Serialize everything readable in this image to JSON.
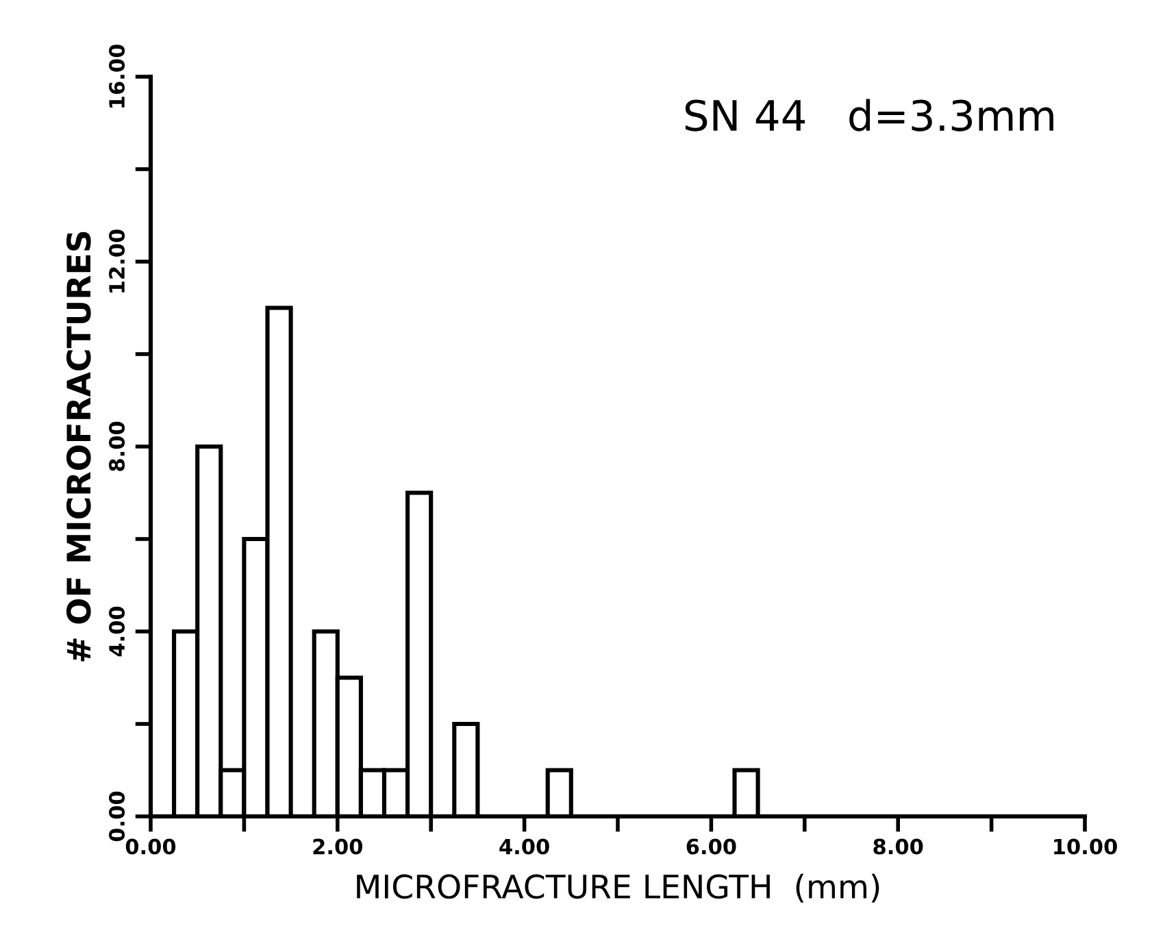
{
  "chart_data": {
    "type": "histogram",
    "title": "SN 44   d=3.3mm",
    "xlabel": "MICROFRACTURE LENGTH  (mm)",
    "ylabel": "# OF MICROFRACTURES",
    "bins": [
      0,
      0.25,
      0.5,
      0.75,
      1,
      1.25,
      1.5,
      1.75,
      2,
      2.25,
      2.5,
      2.75,
      3,
      3.25,
      3.5,
      3.75,
      4,
      4.25,
      4.5,
      4.75,
      5,
      5.25,
      5.5,
      5.75,
      6,
      6.25,
      6.5,
      6.75,
      7,
      7.25,
      7.5,
      7.75,
      8,
      8.25,
      8.5,
      8.75,
      9,
      9.25,
      9.5,
      9.75,
      10
    ],
    "values": [
      0,
      4,
      8,
      1,
      6,
      11,
      0,
      4,
      3,
      1,
      1,
      7,
      0,
      2,
      0,
      0,
      0,
      1,
      0,
      0,
      0,
      0,
      0,
      0,
      0,
      1,
      0,
      0,
      0,
      0,
      0,
      0,
      0,
      0,
      0,
      0,
      0,
      0,
      0,
      0
    ],
    "color": "#ffffff",
    "xlim": [
      0,
      10
    ],
    "ylim": [
      0,
      16
    ],
    "xticks": [
      {
        "value": 0,
        "label": "0.00"
      },
      {
        "value": 1,
        "label": null
      },
      {
        "value": 2,
        "label": "2.00"
      },
      {
        "value": 3,
        "label": null
      },
      {
        "value": 4,
        "label": "4.00"
      },
      {
        "value": 5,
        "label": null
      },
      {
        "value": 6,
        "label": "6.00"
      },
      {
        "value": 7,
        "label": null
      },
      {
        "value": 8,
        "label": "8.00"
      },
      {
        "value": 9,
        "label": null
      },
      {
        "value": 10,
        "label": "10.00"
      }
    ],
    "yticks": [
      {
        "value": 0,
        "label": "0.00"
      },
      {
        "value": 2,
        "label": null
      },
      {
        "value": 4,
        "label": "4.00"
      },
      {
        "value": 6,
        "label": null
      },
      {
        "value": 8,
        "label": "8.00"
      },
      {
        "value": 10,
        "label": null
      },
      {
        "value": 12,
        "label": "12.00"
      },
      {
        "value": 14,
        "label": null
      },
      {
        "value": 16,
        "label": "16.00"
      }
    ],
    "grid": false
  }
}
